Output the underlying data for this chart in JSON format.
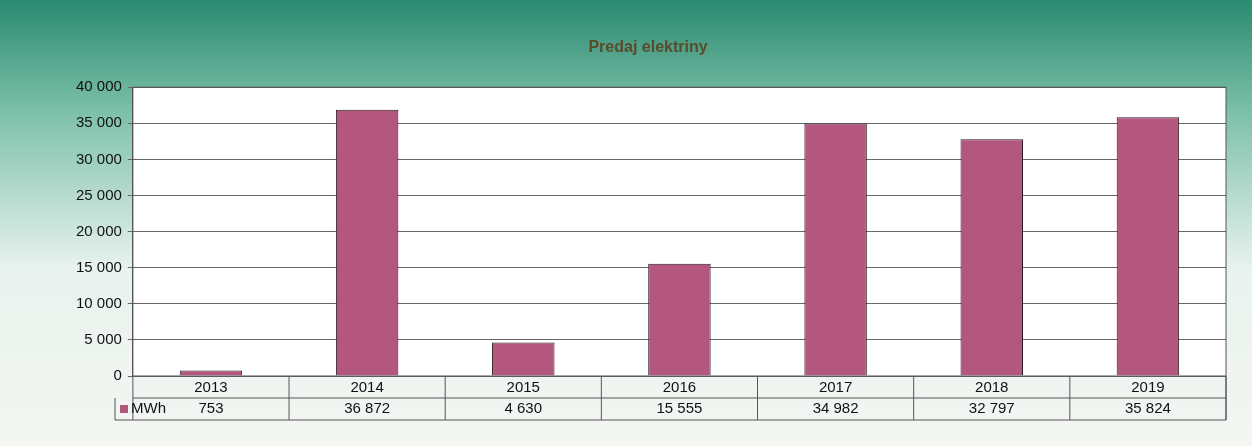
{
  "chart_data": {
    "type": "bar",
    "title": "Predaj elektriny",
    "categories": [
      "2013",
      "2014",
      "2015",
      "2016",
      "2017",
      "2018",
      "2019"
    ],
    "series": [
      {
        "name": "MWh",
        "color": "#b4577f",
        "values": [
          753,
          36872,
          4630,
          15555,
          34982,
          32797,
          35824
        ]
      }
    ],
    "value_labels": [
      "753",
      "36 872",
      "4 630",
      "15 555",
      "34 982",
      "32 797",
      "35 824"
    ],
    "ylim": [
      0,
      40000
    ],
    "yticks": [
      {
        "value": 0,
        "label": "0"
      },
      {
        "value": 5000,
        "label": "5 000"
      },
      {
        "value": 10000,
        "label": "10 000"
      },
      {
        "value": 15000,
        "label": "15 000"
      },
      {
        "value": 20000,
        "label": "20 000"
      },
      {
        "value": 25000,
        "label": "25 000"
      },
      {
        "value": 30000,
        "label": "30 000"
      },
      {
        "value": 35000,
        "label": "35 000"
      },
      {
        "value": 40000,
        "label": "40 000"
      }
    ],
    "grid": "y",
    "legend": "bottom"
  }
}
